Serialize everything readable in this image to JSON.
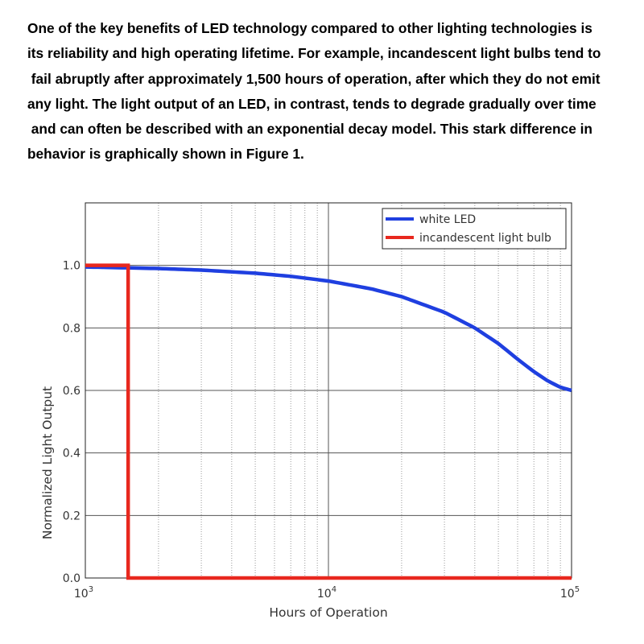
{
  "paragraph": {
    "lines": [
      "One of the key benefits of LED technology compared to other lighting technologies is",
      "its reliability and high operating lifetime. For example, incandescent light bulbs tend to",
      " fail abruptly after approximately 1,500 hours of operation, after which they do not emit",
      "any light. The light output of an LED, in contrast, tends to degrade gradually over time",
      " and can often be described with an exponential decay model. This stark difference in",
      "behavior is graphically shown in Figure 1."
    ]
  },
  "chart_data": {
    "type": "line",
    "title": "",
    "xlabel": "Hours of Operation",
    "ylabel": "Normalized Light Output",
    "xscale": "log",
    "xlim": [
      1000,
      100000
    ],
    "ylim": [
      0,
      1.2
    ],
    "x_ticks": [
      {
        "base": "10",
        "exp": "3",
        "value": 1000
      },
      {
        "base": "10",
        "exp": "4",
        "value": 10000
      },
      {
        "base": "10",
        "exp": "5",
        "value": 100000
      }
    ],
    "y_ticks": [
      "0.0",
      "0.2",
      "0.4",
      "0.6",
      "0.8",
      "1.0"
    ],
    "grid": "major solid, minor dotted (x)",
    "legend": {
      "position": "top-right"
    },
    "series": [
      {
        "name": "white LED",
        "color": "#1f3fe0",
        "x": [
          1000,
          2000,
          3000,
          5000,
          7000,
          10000,
          15000,
          20000,
          30000,
          40000,
          50000,
          60000,
          70000,
          80000,
          90000,
          100000
        ],
        "y": [
          0.995,
          0.99,
          0.985,
          0.975,
          0.965,
          0.95,
          0.925,
          0.9,
          0.85,
          0.8,
          0.75,
          0.7,
          0.66,
          0.63,
          0.61,
          0.6
        ]
      },
      {
        "name": "incandescent light bulb",
        "color": "#e8281e",
        "x": [
          1000,
          1500,
          1500,
          100000
        ],
        "y": [
          1.0,
          1.0,
          0.0,
          0.0
        ]
      }
    ]
  }
}
